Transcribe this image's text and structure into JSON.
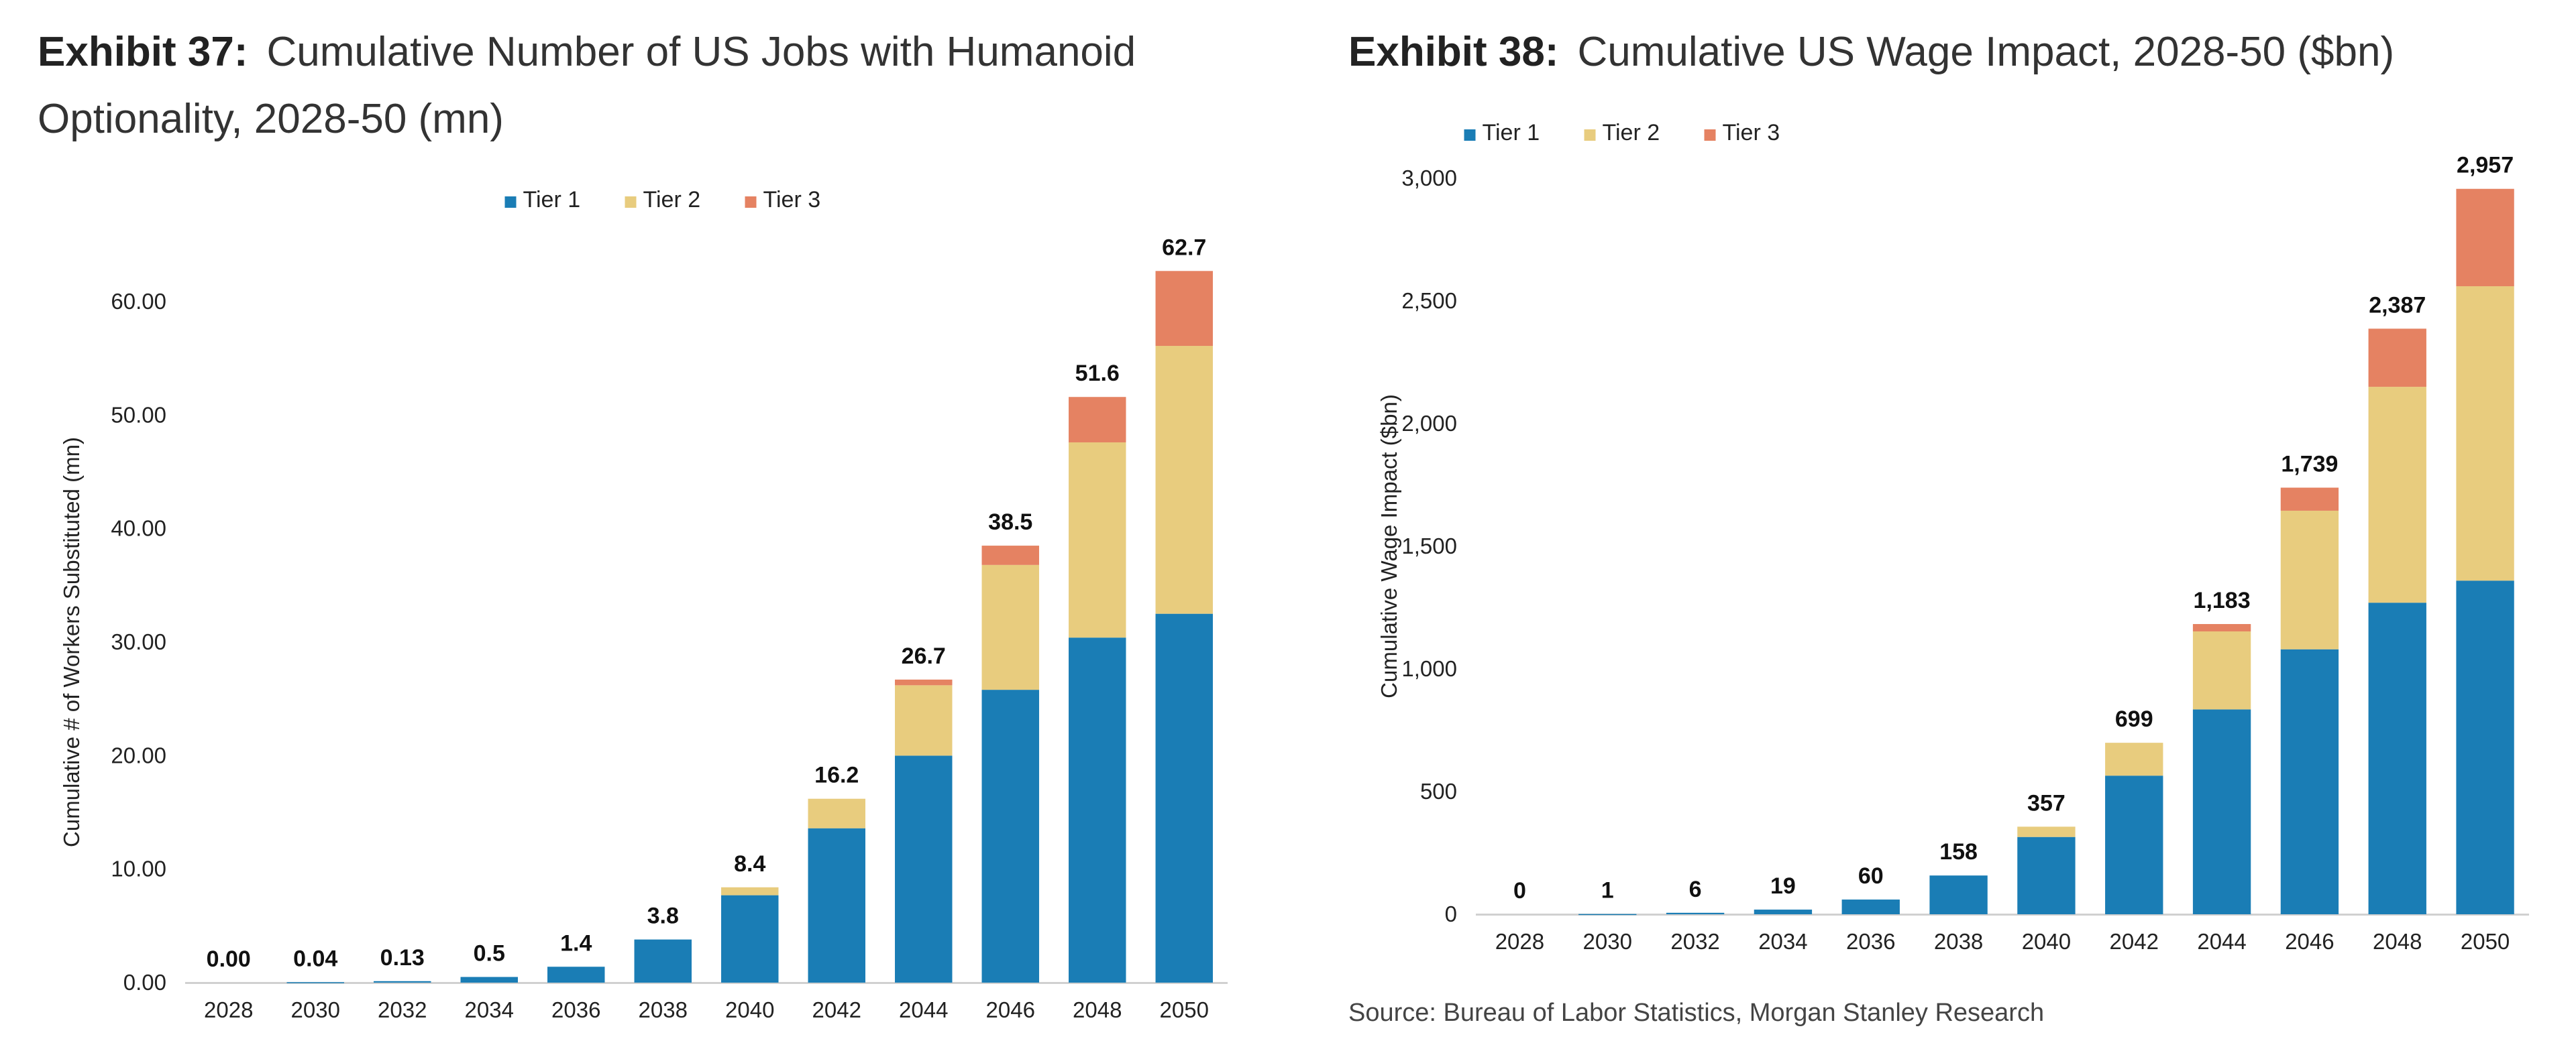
{
  "chart_data": [
    {
      "type": "bar",
      "stacked": true,
      "exhibit": "Exhibit 37:",
      "title": "Cumulative Number of US Jobs with Humanoid Optionality, 2028-50 (mn)",
      "title_lines": [
        "Cumulative Number of US Jobs with Humanoid",
        "Optionality, 2028-50 (mn)"
      ],
      "xlabel": "",
      "ylabel": "Cumulative # of Workers Substituted (mn)",
      "ylim": [
        0,
        60
      ],
      "yticks": [
        0,
        10,
        20,
        30,
        40,
        50,
        60
      ],
      "ytick_labels": [
        "0.00",
        "10.00",
        "20.00",
        "30.00",
        "40.00",
        "50.00",
        "60.00"
      ],
      "legend_position": "top-center",
      "categories": [
        "2028",
        "2030",
        "2032",
        "2034",
        "2036",
        "2038",
        "2040",
        "2042",
        "2044",
        "2046",
        "2048",
        "2050"
      ],
      "series": [
        {
          "name": "Tier 1",
          "color": "#1a7db5",
          "values": [
            0.0,
            0.04,
            0.13,
            0.5,
            1.4,
            3.8,
            7.7,
            13.6,
            20.0,
            25.8,
            30.4,
            32.5
          ]
        },
        {
          "name": "Tier 2",
          "color": "#e8cc7e",
          "values": [
            0.0,
            0.0,
            0.0,
            0.0,
            0.0,
            0.0,
            0.7,
            2.6,
            6.2,
            11.0,
            17.2,
            23.6
          ]
        },
        {
          "name": "Tier 3",
          "color": "#e58262",
          "values": [
            0.0,
            0.0,
            0.0,
            0.0,
            0.0,
            0.0,
            0.0,
            0.0,
            0.5,
            1.7,
            4.0,
            6.6
          ]
        }
      ],
      "totals": [
        0.0,
        0.04,
        0.13,
        0.5,
        1.4,
        3.8,
        8.4,
        16.2,
        26.7,
        38.5,
        51.6,
        62.7
      ],
      "total_labels": [
        "0.00",
        "0.04",
        "0.13",
        "0.5",
        "1.4",
        "3.8",
        "8.4",
        "16.2",
        "26.7",
        "38.5",
        "51.6",
        "62.7"
      ]
    },
    {
      "type": "bar",
      "stacked": true,
      "exhibit": "Exhibit 38:",
      "title": "Cumulative US Wage Impact, 2028-50 ($bn)",
      "title_lines": [
        "Cumulative US Wage Impact, 2028-50 ($bn)"
      ],
      "xlabel": "",
      "ylabel": "Cumulative Wage Impact ($bn)",
      "ylim": [
        0,
        3000
      ],
      "yticks": [
        0,
        500,
        1000,
        1500,
        2000,
        2500,
        3000
      ],
      "ytick_labels": [
        "0",
        "500",
        "1,000",
        "1,500",
        "2,000",
        "2,500",
        "3,000"
      ],
      "legend_position": "top-center",
      "categories": [
        "2028",
        "2030",
        "2032",
        "2034",
        "2036",
        "2038",
        "2040",
        "2042",
        "2044",
        "2046",
        "2048",
        "2050"
      ],
      "series": [
        {
          "name": "Tier 1",
          "color": "#1a7db5",
          "values": [
            0,
            1,
            6,
            19,
            60,
            158,
            315,
            565,
            835,
            1080,
            1270,
            1360
          ]
        },
        {
          "name": "Tier 2",
          "color": "#e8cc7e",
          "values": [
            0,
            0,
            0,
            0,
            0,
            0,
            42,
            134,
            318,
            565,
            880,
            1200
          ]
        },
        {
          "name": "Tier 3",
          "color": "#e58262",
          "values": [
            0,
            0,
            0,
            0,
            0,
            0,
            0,
            0,
            30,
            94,
            237,
            397
          ]
        }
      ],
      "totals": [
        0,
        1,
        6,
        19,
        60,
        158,
        357,
        699,
        1183,
        1739,
        2387,
        2957
      ],
      "total_labels": [
        "0",
        "1",
        "6",
        "19",
        "60",
        "158",
        "357",
        "699",
        "1,183",
        "1,739",
        "2,387",
        "2,957"
      ]
    }
  ],
  "source": "Source: Bureau of Labor Statistics, Morgan Stanley Research"
}
